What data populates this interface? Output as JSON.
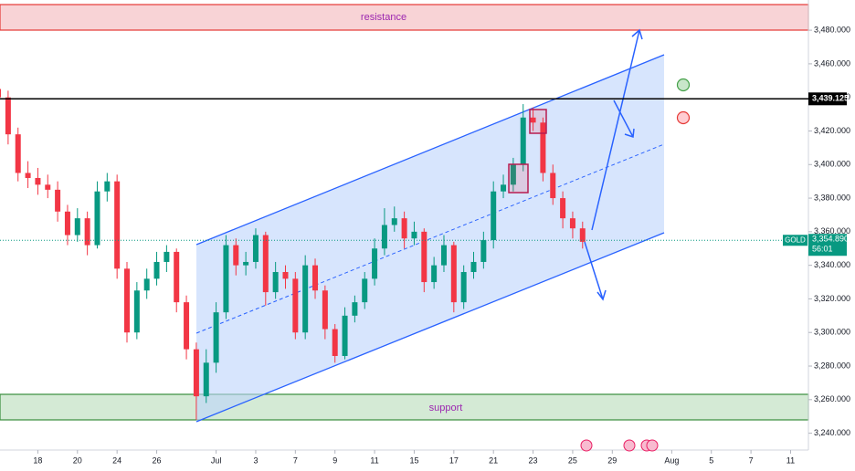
{
  "chart_data": {
    "type": "candlestick",
    "symbol": "GOLD",
    "zones": [
      {
        "label": "resistance"
      },
      {
        "label": "support"
      }
    ],
    "up_color": "#089981",
    "down_color": "#f23645",
    "x": [
      0,
      0.5,
      1,
      1.5,
      2,
      2.5,
      3,
      3.5,
      4,
      4.5,
      5,
      5.5,
      6,
      6.5,
      7,
      7.5,
      8,
      8.5,
      9,
      9.5,
      10,
      10.5,
      11,
      11.5,
      12,
      12.5,
      13,
      13.5,
      14,
      14.5,
      15,
      15.5,
      16,
      16.5,
      17,
      17.5,
      18,
      18.5,
      19,
      19.5,
      20,
      20.5,
      21,
      21.5,
      22,
      22.5,
      23,
      23.5,
      24,
      24.5,
      25,
      25.5,
      26,
      26.5,
      27,
      27.5,
      28,
      28.5,
      29,
      29.5
    ],
    "open": [
      3445,
      3440,
      3418,
      3395,
      3392,
      3388,
      3385,
      3372,
      3358,
      3368,
      3352,
      3384,
      3390,
      3338,
      3300,
      3325,
      3332,
      3342,
      3348,
      3318,
      3290,
      3262,
      3282,
      3312,
      3352,
      3340,
      3342,
      3358,
      3324,
      3336,
      3332,
      3300,
      3340,
      3325,
      3302,
      3286,
      3310,
      3318,
      3332,
      3350,
      3364,
      3368,
      3356,
      3360,
      3330,
      3340,
      3352,
      3318,
      3336,
      3342,
      3355,
      3384,
      3388,
      3400,
      3428,
      3425,
      3395,
      3380,
      3368,
      3362
    ],
    "high": [
      3450,
      3444,
      3422,
      3402,
      3398,
      3394,
      3390,
      3376,
      3374,
      3372,
      3390,
      3395,
      3394,
      3342,
      3330,
      3338,
      3348,
      3352,
      3350,
      3322,
      3294,
      3290,
      3318,
      3358,
      3356,
      3348,
      3362,
      3360,
      3342,
      3340,
      3336,
      3346,
      3344,
      3328,
      3305,
      3315,
      3322,
      3336,
      3356,
      3374,
      3375,
      3372,
      3366,
      3362,
      3345,
      3358,
      3354,
      3340,
      3348,
      3360,
      3390,
      3394,
      3404,
      3436,
      3434,
      3428,
      3400,
      3384,
      3372,
      3366
    ],
    "low": [
      3434,
      3412,
      3390,
      3386,
      3382,
      3380,
      3366,
      3352,
      3354,
      3346,
      3350,
      3378,
      3332,
      3294,
      3296,
      3320,
      3328,
      3336,
      3312,
      3284,
      3248,
      3258,
      3276,
      3308,
      3334,
      3334,
      3338,
      3316,
      3320,
      3326,
      3296,
      3296,
      3320,
      3296,
      3282,
      3284,
      3306,
      3314,
      3328,
      3346,
      3360,
      3350,
      3352,
      3324,
      3326,
      3336,
      3312,
      3314,
      3332,
      3338,
      3350,
      3380,
      3384,
      3396,
      3420,
      3390,
      3376,
      3362,
      3356,
      3350
    ],
    "close": [
      3440,
      3418,
      3395,
      3392,
      3388,
      3385,
      3372,
      3358,
      3368,
      3352,
      3384,
      3390,
      3338,
      3300,
      3325,
      3332,
      3342,
      3348,
      3318,
      3290,
      3262,
      3282,
      3312,
      3352,
      3340,
      3342,
      3358,
      3324,
      3336,
      3332,
      3300,
      3340,
      3325,
      3302,
      3286,
      3310,
      3318,
      3332,
      3350,
      3364,
      3368,
      3356,
      3360,
      3330,
      3340,
      3352,
      3318,
      3336,
      3342,
      3355,
      3384,
      3388,
      3400,
      3428,
      3425,
      3395,
      3380,
      3368,
      3362,
      3354
    ],
    "xlim": [
      0.09,
      40.9
    ],
    "ylim": [
      3230,
      3498
    ],
    "yticks": [
      {
        "value": 3240,
        "label": "3,240.000"
      },
      {
        "value": 3260,
        "label": "3,260.000"
      },
      {
        "value": 3280,
        "label": "3,280.000"
      },
      {
        "value": 3300,
        "label": "3,300.000"
      },
      {
        "value": 3320,
        "label": "3,320.000"
      },
      {
        "value": 3340,
        "label": "3,340.000"
      },
      {
        "value": 3360,
        "label": "3,360.000"
      },
      {
        "value": 3380,
        "label": "3,380.000"
      },
      {
        "value": 3400,
        "label": "3,400.000"
      },
      {
        "value": 3420,
        "label": "3,420.000"
      },
      {
        "value": 3440,
        "label": "3,440.000"
      },
      {
        "value": 3460,
        "label": "3,460.000"
      },
      {
        "value": 3480,
        "label": "3,480.000"
      }
    ],
    "xticks": [
      {
        "value": 2,
        "label": "18"
      },
      {
        "value": 4,
        "label": "20"
      },
      {
        "value": 6,
        "label": "24"
      },
      {
        "value": 8,
        "label": "26"
      },
      {
        "value": 11,
        "label": "Jul"
      },
      {
        "value": 13,
        "label": "3"
      },
      {
        "value": 15,
        "label": "7"
      },
      {
        "value": 17,
        "label": "9"
      },
      {
        "value": 19,
        "label": "11"
      },
      {
        "value": 21,
        "label": "15"
      },
      {
        "value": 23,
        "label": "17"
      },
      {
        "value": 25,
        "label": "21"
      },
      {
        "value": 27,
        "label": "23"
      },
      {
        "value": 29,
        "label": "25"
      },
      {
        "value": 31,
        "label": "29"
      },
      {
        "value": 34,
        "label": "Aug"
      },
      {
        "value": 36,
        "label": "5"
      },
      {
        "value": 38,
        "label": "7"
      },
      {
        "value": 40,
        "label": "11"
      }
    ],
    "level": {
      "value": 3439.125,
      "label": "3,439.125"
    },
    "last_price": {
      "value": 3354.89,
      "label": "3,354.890"
    },
    "countdown": "56:01"
  }
}
